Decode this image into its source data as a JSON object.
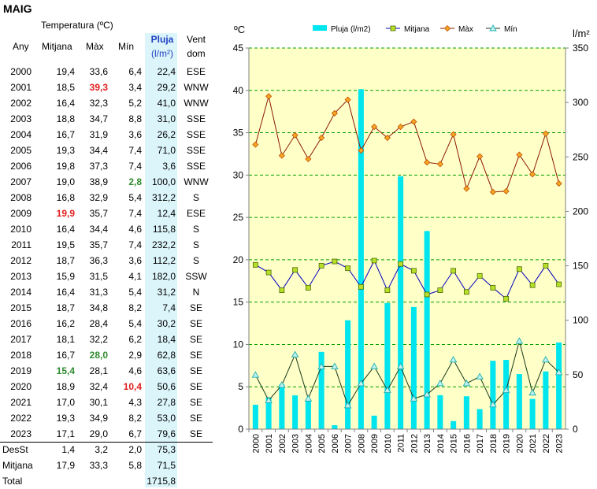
{
  "page_title": "MAIG",
  "table": {
    "header": {
      "temperatura": "Temperatura (ºC)",
      "any": "Any",
      "mitjana": "Mitjana",
      "max": "Màx",
      "min": "Mín",
      "pluja": "Pluja",
      "pluja_unit": "(l/m²)",
      "vent": "Vent",
      "vent_sub": "dom"
    },
    "rows": [
      {
        "any": "2000",
        "mitjana": "19,4",
        "max": "33,6",
        "min": "6,4",
        "pluja": "22,4",
        "vent": "ESE"
      },
      {
        "any": "2001",
        "mitjana": "18,5",
        "max": "39,3",
        "min": "3,4",
        "pluja": "29,2",
        "vent": "WNW"
      },
      {
        "any": "2002",
        "mitjana": "16,4",
        "max": "32,3",
        "min": "5,2",
        "pluja": "41,0",
        "vent": "WNW"
      },
      {
        "any": "2003",
        "mitjana": "18,8",
        "max": "34,7",
        "min": "8,8",
        "pluja": "31,0",
        "vent": "SSE"
      },
      {
        "any": "2004",
        "mitjana": "16,7",
        "max": "31,9",
        "min": "3,6",
        "pluja": "26,2",
        "vent": "SSE"
      },
      {
        "any": "2005",
        "mitjana": "19,3",
        "max": "34,4",
        "min": "7,4",
        "pluja": "71,0",
        "vent": "SSE"
      },
      {
        "any": "2006",
        "mitjana": "19,8",
        "max": "37,3",
        "min": "7,4",
        "pluja": "3,6",
        "vent": "SSE"
      },
      {
        "any": "2007",
        "mitjana": "19,0",
        "max": "38,9",
        "min": "2,8",
        "pluja": "100,0",
        "vent": "WNW"
      },
      {
        "any": "2008",
        "mitjana": "16,8",
        "max": "32,9",
        "min": "5,4",
        "pluja": "312,2",
        "vent": "S"
      },
      {
        "any": "2009",
        "mitjana": "19,9",
        "max": "35,7",
        "min": "7,4",
        "pluja": "12,4",
        "vent": "ESE"
      },
      {
        "any": "2010",
        "mitjana": "16,4",
        "max": "34,4",
        "min": "4,6",
        "pluja": "115,8",
        "vent": "S"
      },
      {
        "any": "2011",
        "mitjana": "19,5",
        "max": "35,7",
        "min": "7,4",
        "pluja": "232,2",
        "vent": "S"
      },
      {
        "any": "2012",
        "mitjana": "18,7",
        "max": "36,3",
        "min": "3,6",
        "pluja": "112,2",
        "vent": "S"
      },
      {
        "any": "2013",
        "mitjana": "15,9",
        "max": "31,5",
        "min": "4,1",
        "pluja": "182,0",
        "vent": "SSW"
      },
      {
        "any": "2014",
        "mitjana": "16,4",
        "max": "31,3",
        "min": "5,4",
        "pluja": "31,2",
        "vent": "N"
      },
      {
        "any": "2015",
        "mitjana": "18,7",
        "max": "34,8",
        "min": "8,2",
        "pluja": "7,4",
        "vent": "SE"
      },
      {
        "any": "2016",
        "mitjana": "16,2",
        "max": "28,4",
        "min": "5,4",
        "pluja": "30,2",
        "vent": "SE"
      },
      {
        "any": "2017",
        "mitjana": "18,1",
        "max": "32,2",
        "min": "6,2",
        "pluja": "18,4",
        "vent": "SE"
      },
      {
        "any": "2018",
        "mitjana": "16,7",
        "max": "28,0",
        "min": "2,9",
        "pluja": "62,8",
        "vent": "SE"
      },
      {
        "any": "2019",
        "mitjana": "15,4",
        "max": "28,1",
        "min": "4,6",
        "pluja": "63,6",
        "vent": "SE"
      },
      {
        "any": "2020",
        "mitjana": "18,9",
        "max": "32,4",
        "min": "10,4",
        "pluja": "50,6",
        "vent": "SE"
      },
      {
        "any": "2021",
        "mitjana": "17,0",
        "max": "30,1",
        "min": "4,3",
        "pluja": "27,8",
        "vent": "SE"
      },
      {
        "any": "2022",
        "mitjana": "19,3",
        "max": "34,9",
        "min": "8,2",
        "pluja": "53,0",
        "vent": "SE"
      },
      {
        "any": "2023",
        "mitjana": "17,1",
        "max": "29,0",
        "min": "6,7",
        "pluja": "79,6",
        "vent": "SE"
      }
    ],
    "summary": [
      {
        "label": "DesSt",
        "mitjana": "1,4",
        "max": "3,2",
        "min": "2,0",
        "pluja": "75,3"
      },
      {
        "label": "Mitjana",
        "mitjana": "17,9",
        "max": "33,3",
        "min": "5,8",
        "pluja": "71,5"
      },
      {
        "label": "Total",
        "mitjana": "",
        "max": "",
        "min": "",
        "pluja": "1715,8"
      }
    ],
    "highlights": [
      {
        "row": 1,
        "col": "max",
        "color": "#e02020"
      },
      {
        "row": 9,
        "col": "mitjana",
        "color": "#e02020"
      },
      {
        "row": 20,
        "col": "min",
        "color": "#e02020"
      },
      {
        "row": 7,
        "col": "min",
        "color": "#2e8b2e"
      },
      {
        "row": 18,
        "col": "max",
        "color": "#2e8b2e"
      },
      {
        "row": 19,
        "col": "mitjana",
        "color": "#2e8b2e"
      }
    ]
  },
  "chart_data": {
    "type": "bar",
    "x": [
      "2000",
      "2001",
      "2002",
      "2003",
      "2004",
      "2005",
      "2006",
      "2007",
      "2008",
      "2009",
      "2010",
      "2011",
      "2012",
      "2013",
      "2014",
      "2015",
      "2016",
      "2017",
      "2018",
      "2019",
      "2020",
      "2021",
      "2022",
      "2023"
    ],
    "y_left_label": "ºC",
    "y_left_lim": [
      0,
      45
    ],
    "y_left_ticks": [
      0,
      5,
      10,
      15,
      20,
      25,
      30,
      35,
      40,
      45
    ],
    "y_right_label": "l/m²",
    "y_right_lim": [
      0,
      350
    ],
    "y_right_ticks": [
      0,
      50,
      100,
      150,
      200,
      250,
      300,
      350
    ],
    "grid": true,
    "legend_position": "top",
    "series": [
      {
        "name": "Pluja (l/m2)",
        "type": "bar",
        "axis": "right",
        "color": "#00e5ee",
        "values": [
          22.4,
          29.2,
          41.0,
          31.0,
          26.2,
          71.0,
          3.6,
          100.0,
          312.2,
          12.4,
          115.8,
          232.2,
          112.2,
          182.0,
          31.2,
          7.4,
          30.2,
          18.4,
          62.8,
          63.6,
          50.6,
          27.8,
          53.0,
          79.6
        ]
      },
      {
        "name": "Mitjana",
        "type": "line",
        "axis": "left",
        "line_color": "#0000c0",
        "marker": "square",
        "marker_color": "#b8e02a",
        "values": [
          19.4,
          18.5,
          16.4,
          18.8,
          16.7,
          19.3,
          19.8,
          19.0,
          16.8,
          19.9,
          16.4,
          19.5,
          18.7,
          15.9,
          16.4,
          18.7,
          16.2,
          18.1,
          16.7,
          15.4,
          18.9,
          17.0,
          19.3,
          17.1
        ]
      },
      {
        "name": "Màx",
        "type": "line",
        "axis": "left",
        "line_color": "#8b1a00",
        "marker": "diamond",
        "marker_color": "#f5a623",
        "values": [
          33.6,
          39.3,
          32.3,
          34.7,
          31.9,
          34.4,
          37.3,
          38.9,
          32.9,
          35.7,
          34.4,
          35.7,
          36.3,
          31.5,
          31.3,
          34.8,
          28.4,
          32.2,
          28.0,
          28.1,
          32.4,
          30.1,
          34.9,
          29.0
        ]
      },
      {
        "name": "Mín",
        "type": "line",
        "axis": "left",
        "line_color": "#1a3a1a",
        "marker": "triangle",
        "marker_color": "#bff0f0",
        "values": [
          6.4,
          3.4,
          5.2,
          8.8,
          3.6,
          7.4,
          7.4,
          2.8,
          5.4,
          7.4,
          4.6,
          7.4,
          3.6,
          4.1,
          5.4,
          8.2,
          5.4,
          6.2,
          2.9,
          4.6,
          10.4,
          4.3,
          8.2,
          6.7
        ]
      }
    ]
  }
}
